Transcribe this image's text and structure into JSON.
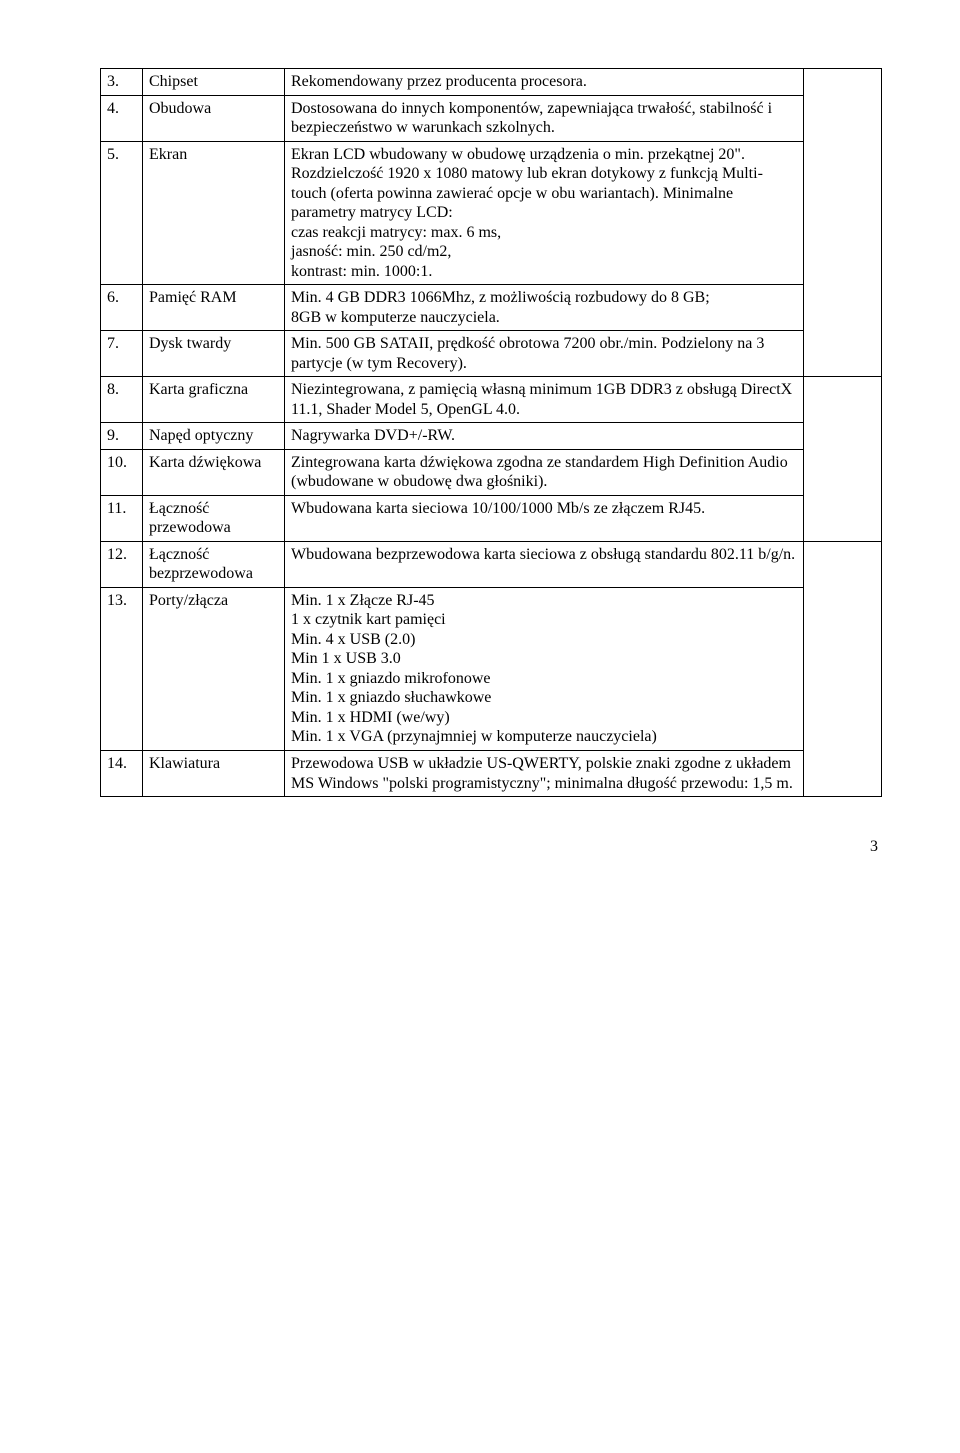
{
  "rows": [
    {
      "num": "3.",
      "name": "Chipset",
      "desc": "Rekomendowany przez producenta procesora."
    },
    {
      "num": "4.",
      "name": "Obudowa",
      "desc": "Dostosowana do innych komponentów, zapewniająca trwałość, stabilność i bezpieczeństwo w warunkach szkolnych."
    },
    {
      "num": "5.",
      "name": "Ekran",
      "desc": "Ekran LCD wbudowany w obudowę urządzenia o min. przekątnej 20\". Rozdzielczość 1920 x 1080 matowy lub ekran dotykowy z funkcją Multi-touch (oferta powinna zawierać opcje w obu wariantach). Minimalne parametry matrycy LCD:\nczas reakcji matrycy: max. 6 ms,\njasność: min. 250 cd/m2,\nkontrast: min. 1000:1."
    },
    {
      "num": "6.",
      "name": "Pamięć RAM",
      "desc": "Min. 4 GB DDR3 1066Mhz, z możliwością rozbudowy do 8 GB;\n8GB w komputerze nauczyciela."
    },
    {
      "num": "7.",
      "name": "Dysk twardy",
      "desc": "Min. 500 GB SATAII, prędkość obrotowa 7200 obr./min. Podzielony na 3 partycje (w tym Recovery)."
    },
    {
      "num": "8.",
      "name": "Karta graficzna",
      "desc": "Niezintegrowana, z pamięcią własną minimum 1GB DDR3 z obsługą DirectX 11.1, Shader Model 5, OpenGL 4.0."
    },
    {
      "num": "9.",
      "name": "Napęd optyczny",
      "desc": "Nagrywarka DVD+/-RW."
    },
    {
      "num": "10.",
      "name": "Karta dźwiękowa",
      "desc": "Zintegrowana karta dźwiękowa zgodna ze standardem High Definition Audio (wbudowane w obudowę dwa głośniki)."
    },
    {
      "num": "11.",
      "name": "Łączność przewodowa",
      "desc": "Wbudowana karta sieciowa 10/100/1000 Mb/s ze złączem RJ45."
    },
    {
      "num": "12.",
      "name": "Łączność bezprzewodowa",
      "desc": "Wbudowana bezprzewodowa karta sieciowa z obsługą standardu 802.11 b/g/n."
    },
    {
      "num": "13.",
      "name": "Porty/złącza",
      "desc": "Min. 1 x Złącze RJ-45\n1 x czytnik kart pamięci\nMin. 4 x USB (2.0)\nMin 1 x USB 3.0\nMin. 1 x gniazdo mikrofonowe\nMin. 1 x gniazdo słuchawkowe\nMin. 1 x HDMI (we/wy)\nMin. 1 x VGA (przynajmniej w komputerze nauczyciela)"
    },
    {
      "num": "14.",
      "name": "Klawiatura",
      "desc": "Przewodowa USB w układzie US-QWERTY, polskie znaki zgodne z układem MS Windows \"polski programistyczny\"; minimalna długość przewodu: 1,5 m."
    }
  ],
  "mergedEmptyGroups": [
    5,
    4,
    3
  ],
  "pageNumber": "3"
}
